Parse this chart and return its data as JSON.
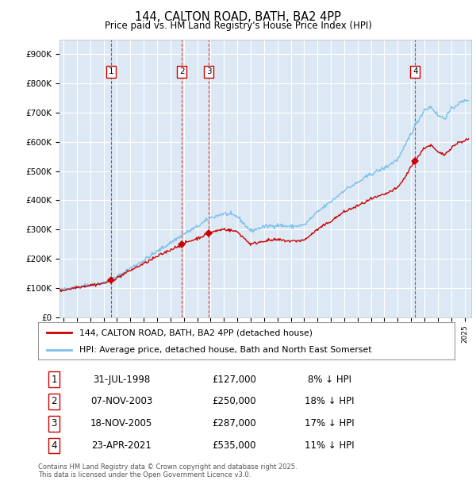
{
  "title": "144, CALTON ROAD, BATH, BA2 4PP",
  "subtitle": "Price paid vs. HM Land Registry's House Price Index (HPI)",
  "ylabel_ticks": [
    "£0",
    "£100K",
    "£200K",
    "£300K",
    "£400K",
    "£500K",
    "£600K",
    "£700K",
    "£800K",
    "£900K"
  ],
  "ytick_values": [
    0,
    100000,
    200000,
    300000,
    400000,
    500000,
    600000,
    700000,
    800000,
    900000
  ],
  "ylim": [
    0,
    950000
  ],
  "xlim_start": 1994.7,
  "xlim_end": 2025.5,
  "background_color": "#dce9f5",
  "grid_color": "#ffffff",
  "hpi_color": "#7bbfe8",
  "price_color": "#cc0000",
  "transactions": [
    {
      "num": 1,
      "date_str": "31-JUL-1998",
      "date_x": 1998.58,
      "price": 127000,
      "pct": "8%"
    },
    {
      "num": 2,
      "date_str": "07-NOV-2003",
      "date_x": 2003.85,
      "price": 250000,
      "pct": "18%"
    },
    {
      "num": 3,
      "date_str": "18-NOV-2005",
      "date_x": 2005.88,
      "price": 287000,
      "pct": "17%"
    },
    {
      "num": 4,
      "date_str": "23-APR-2021",
      "date_x": 2021.31,
      "price": 535000,
      "pct": "11%"
    }
  ],
  "footer_text": "Contains HM Land Registry data © Crown copyright and database right 2025.\nThis data is licensed under the Open Government Licence v3.0.",
  "legend_line1": "144, CALTON ROAD, BATH, BA2 4PP (detached house)",
  "legend_line2": "HPI: Average price, detached house, Bath and North East Somerset"
}
